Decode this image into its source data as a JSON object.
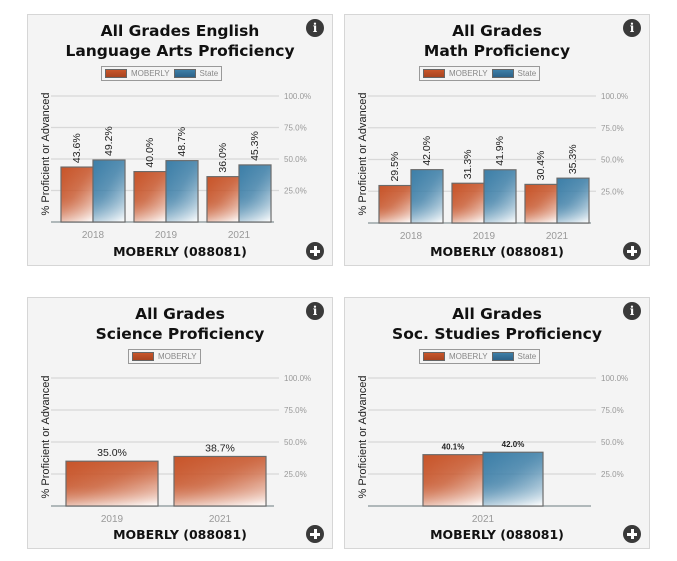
{
  "colors": {
    "moberly": "#c8552a",
    "state": "#3d7fa8",
    "grid": "#d8d8d8",
    "tick": "#999999",
    "baseline": "#9aa3a6"
  },
  "icons": {
    "info": "i",
    "expand": "plus-circle-icon"
  },
  "chart_data": [
    {
      "type": "bar",
      "title_lines": [
        "All Grades English",
        "Language Arts Proficiency"
      ],
      "categories": [
        "2018",
        "2019",
        "2021"
      ],
      "series": [
        {
          "name": "MOBERLY",
          "values": [
            43.6,
            40.0,
            36.0
          ],
          "labels": [
            "43.6%",
            "40.0%",
            "36.0%"
          ]
        },
        {
          "name": "State",
          "values": [
            49.2,
            48.7,
            45.3
          ],
          "labels": [
            "49.2%",
            "48.7%",
            "45.3%"
          ]
        }
      ],
      "ylabel": "% Proficient or Advanced",
      "xlabel": "MOBERLY (088081)",
      "yticks": [
        "100.0%",
        "75.0%",
        "50.0%",
        "25.0%"
      ],
      "ytick_values": [
        100,
        75,
        50,
        25
      ],
      "ylim": [
        0,
        100
      ],
      "label_rotation": "vertical",
      "grid": true,
      "legend": "top-center"
    },
    {
      "type": "bar",
      "title_lines": [
        "All Grades",
        "Math Proficiency"
      ],
      "categories": [
        "2018",
        "2019",
        "2021"
      ],
      "series": [
        {
          "name": "MOBERLY",
          "values": [
            29.5,
            31.3,
            30.4
          ],
          "labels": [
            "29.5%",
            "31.3%",
            "30.4%"
          ]
        },
        {
          "name": "State",
          "values": [
            42.0,
            41.9,
            35.3
          ],
          "labels": [
            "42.0%",
            "41.9%",
            "35.3%"
          ]
        }
      ],
      "ylabel": "% Proficient or Advanced",
      "xlabel": "MOBERLY (088081)",
      "yticks": [
        "100.0%",
        "75.0%",
        "50.0%",
        "25.0%"
      ],
      "ytick_values": [
        100,
        75,
        50,
        25
      ],
      "ylim": [
        0,
        100
      ],
      "label_rotation": "vertical",
      "grid": true,
      "legend": "top-center"
    },
    {
      "type": "bar",
      "title_lines": [
        "All Grades",
        "Science Proficiency"
      ],
      "categories": [
        "2019",
        "2021"
      ],
      "series": [
        {
          "name": "MOBERLY",
          "values": [
            35.0,
            38.7
          ],
          "labels": [
            "35.0%",
            "38.7%"
          ]
        }
      ],
      "ylabel": "% Proficient or Advanced",
      "xlabel": "MOBERLY (088081)",
      "yticks": [
        "100.0%",
        "75.0%",
        "50.0%",
        "25.0%"
      ],
      "ytick_values": [
        100,
        75,
        50,
        25
      ],
      "ylim": [
        0,
        100
      ],
      "label_rotation": "horizontal",
      "grid": true,
      "legend": "top-center"
    },
    {
      "type": "bar",
      "title_lines": [
        "All Grades",
        "Soc. Studies Proficiency"
      ],
      "categories": [
        "2021"
      ],
      "series": [
        {
          "name": "MOBERLY",
          "values": [
            40.1
          ],
          "labels": [
            "40.1%"
          ]
        },
        {
          "name": "State",
          "values": [
            42.0
          ],
          "labels": [
            "42.0%"
          ]
        }
      ],
      "ylabel": "% Proficient or Advanced",
      "xlabel": "MOBERLY (088081)",
      "yticks": [
        "100.0%",
        "75.0%",
        "50.0%",
        "25.0%"
      ],
      "ytick_values": [
        100,
        75,
        50,
        25
      ],
      "ylim": [
        0,
        100
      ],
      "label_rotation": "horizontal-small",
      "grid": true,
      "legend": "top-center"
    }
  ]
}
